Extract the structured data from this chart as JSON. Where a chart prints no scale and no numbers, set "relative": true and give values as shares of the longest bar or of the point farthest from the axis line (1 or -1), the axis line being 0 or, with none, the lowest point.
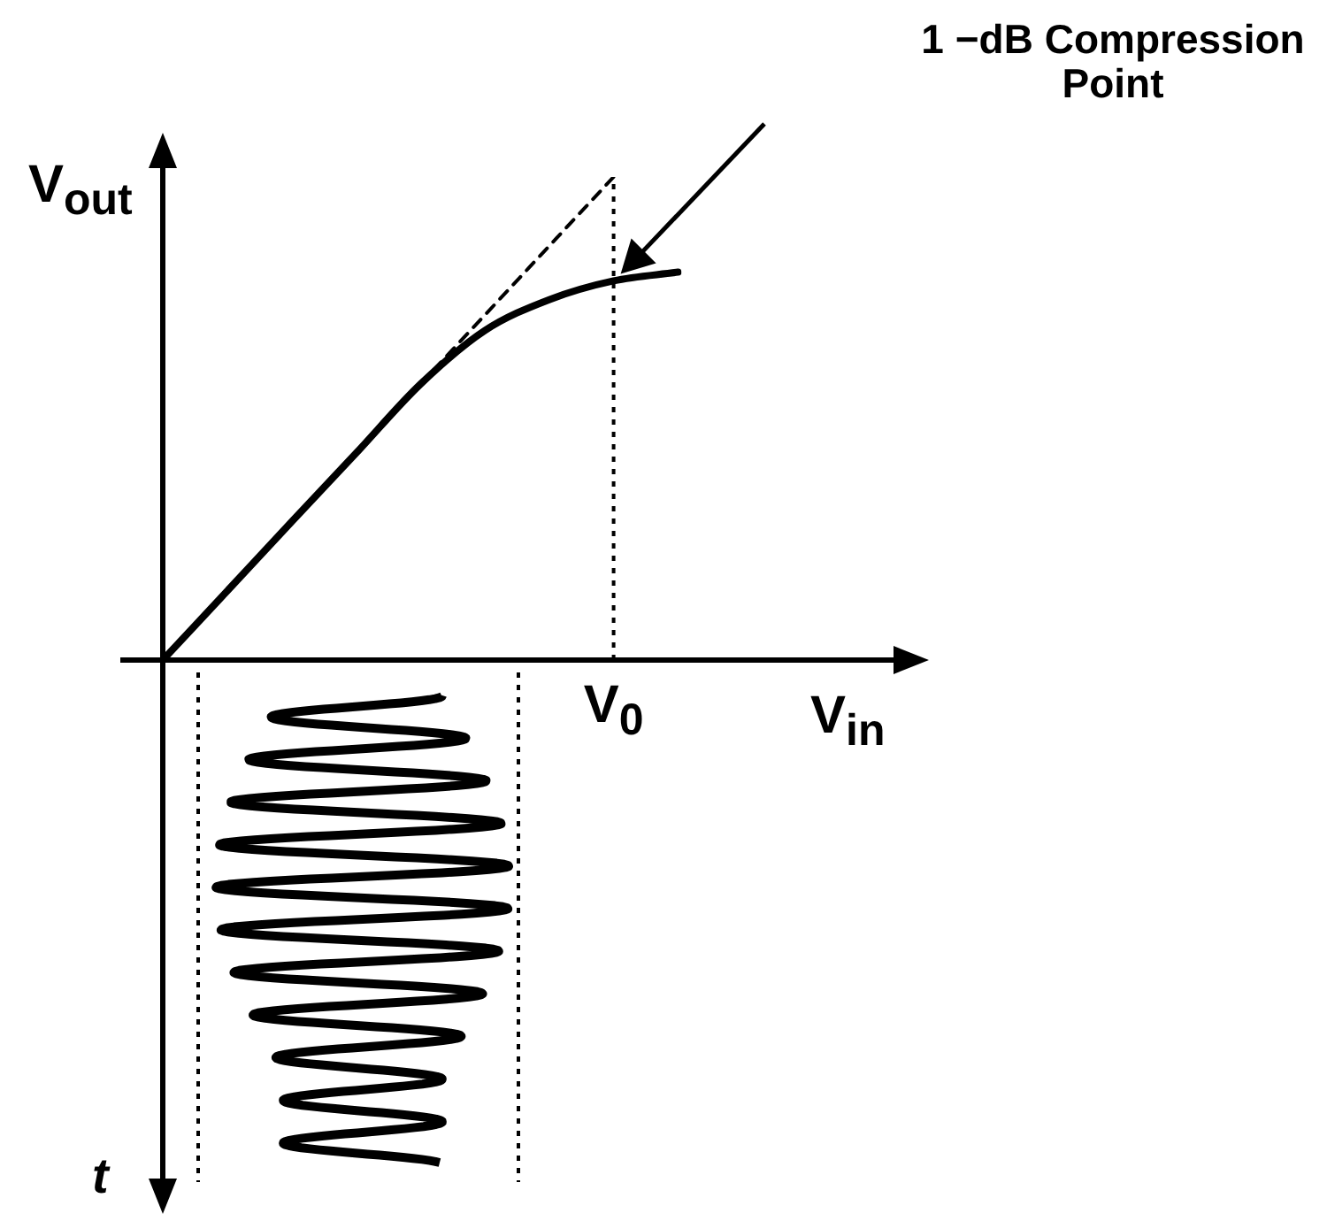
{
  "chart_data": {
    "type": "line",
    "relative": true,
    "xlabel": "V$_{in}$",
    "ylabel": "V$_{out}$",
    "legend": false,
    "marker": "none",
    "categories": [
      null,
      null,
      null,
      null,
      null,
      null,
      null,
      null,
      null
    ],
    "series": [
      {
        "color": "#000000",
        "line_style": "solid",
        "values": [
          0,
          0.143,
          0.286,
          0.428,
          0.571,
          0.682,
          0.746,
          0.785,
          0.803
        ]
      },
      {
        "color": "#000000",
        "line_style": "dashed",
        "values": [
          null,
          null,
          null,
          null,
          0.571,
          0.714,
          0.857,
          1,
          null
        ]
      }
    ],
    "annotations": [
      "1 −dB Compression Point",
      "V$_{0}$",
      "t"
    ]
  }
}
